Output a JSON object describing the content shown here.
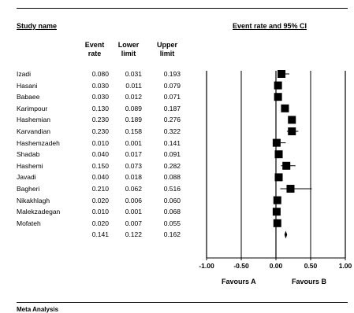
{
  "header": {
    "study_name": "Study name",
    "plot_title": "Event rate and 95% CI",
    "col_event": "Event",
    "col_event2": "rate",
    "col_lower": "Lower",
    "col_lower2": "limit",
    "col_upper": "Upper",
    "col_upper2": "limit"
  },
  "chart_data": {
    "type": "forest",
    "title": "Event rate and 95% CI",
    "xlim": [
      -1.0,
      1.0
    ],
    "x_ticks": [
      "-1.00",
      "-0.50",
      "0.00",
      "0.50",
      "1.00"
    ],
    "x_tick_values": [
      -1.0,
      -0.5,
      0.0,
      0.5,
      1.0
    ],
    "favours_left": "Favours A",
    "favours_right": "Favours B",
    "studies": [
      {
        "name": "Izadi",
        "rate": "0.080",
        "lower": "0.031",
        "upper": "0.193"
      },
      {
        "name": "Hasani",
        "rate": "0.030",
        "lower": "0.011",
        "upper": "0.079"
      },
      {
        "name": "Babaee",
        "rate": "0.030",
        "lower": "0.012",
        "upper": "0.071"
      },
      {
        "name": "Karimpour",
        "rate": "0.130",
        "lower": "0.089",
        "upper": "0.187"
      },
      {
        "name": "Hashemian",
        "rate": "0.230",
        "lower": "0.189",
        "upper": "0.276"
      },
      {
        "name": "Karvandian",
        "rate": "0.230",
        "lower": "0.158",
        "upper": "0.322"
      },
      {
        "name": "Hashemzadeh",
        "rate": "0.010",
        "lower": "0.001",
        "upper": "0.141"
      },
      {
        "name": "Shadab",
        "rate": "0.040",
        "lower": "0.017",
        "upper": "0.091"
      },
      {
        "name": "Hashemi",
        "rate": "0.150",
        "lower": "0.073",
        "upper": "0.282"
      },
      {
        "name": "Javadi",
        "rate": "0.040",
        "lower": "0.018",
        "upper": "0.088"
      },
      {
        "name": "Bagheri",
        "rate": "0.210",
        "lower": "0.062",
        "upper": "0.516"
      },
      {
        "name": "Nikakhlagh",
        "rate": "0.020",
        "lower": "0.006",
        "upper": "0.060"
      },
      {
        "name": "Malekzadegan",
        "rate": "0.010",
        "lower": "0.001",
        "upper": "0.068"
      },
      {
        "name": "Mofateh",
        "rate": "0.020",
        "lower": "0.007",
        "upper": "0.055"
      }
    ],
    "summary": {
      "rate": "0.141",
      "lower": "0.122",
      "upper": "0.162"
    }
  },
  "footer": {
    "label": "Meta Analysis"
  }
}
